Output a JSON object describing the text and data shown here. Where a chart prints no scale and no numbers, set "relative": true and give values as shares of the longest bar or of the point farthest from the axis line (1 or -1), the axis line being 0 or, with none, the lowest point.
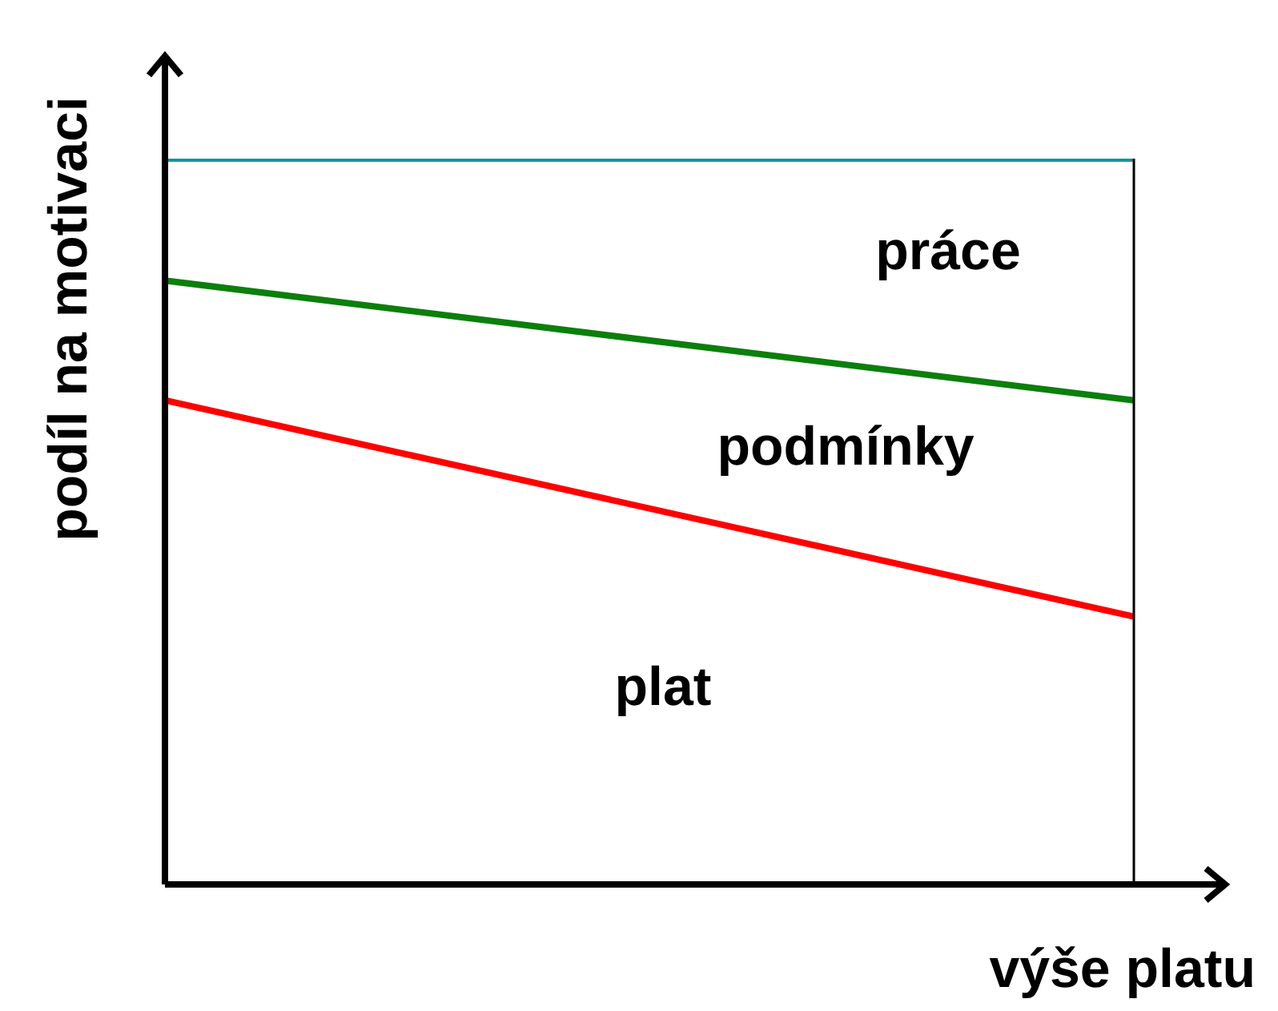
{
  "chart_data": {
    "type": "line",
    "relative": true,
    "xlabel": "výše platu",
    "ylabel": "podíl na motivaci",
    "categories": [
      null,
      null
    ],
    "marker": "none",
    "line_style": "solid",
    "series": [
      {
        "color": "#12979b",
        "values": [
          1,
          1
        ]
      },
      {
        "color": "#0b7f0b",
        "values": [
          0.832,
          0.667
        ]
      },
      {
        "color": "#ff0000",
        "values": [
          0.667,
          0.369
        ]
      }
    ],
    "annotations": [
      "práce",
      "podmínky",
      "plat"
    ]
  }
}
